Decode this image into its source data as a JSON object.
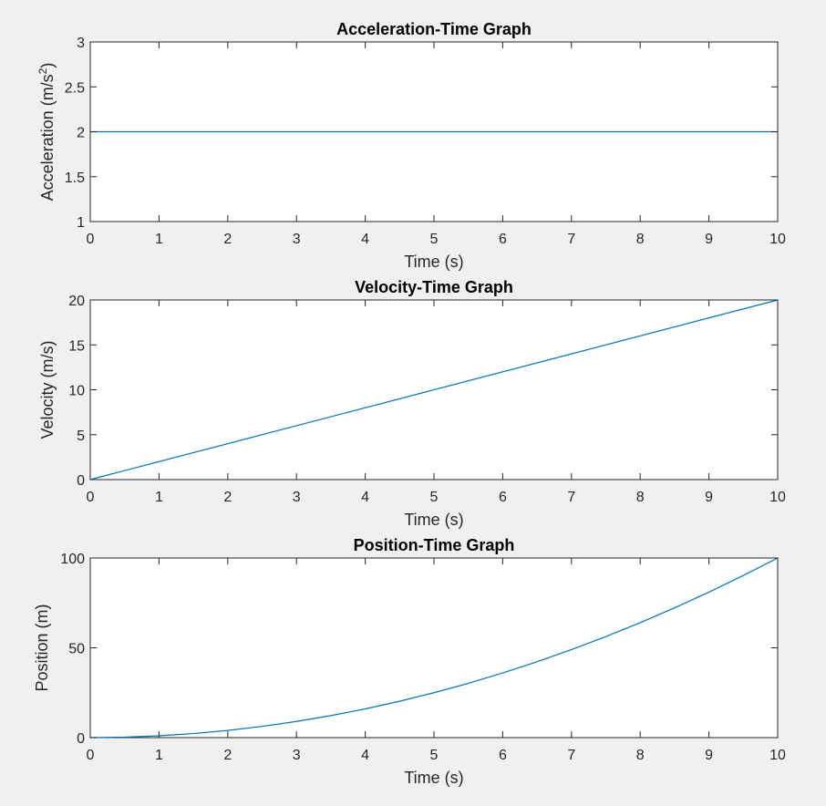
{
  "figure": {
    "background": "#f0f0f0",
    "axes_background": "#ffffff",
    "line_color": "#0072bd",
    "axis_color": "#262626"
  },
  "chart_data": [
    {
      "type": "line",
      "title": "Acceleration-Time Graph",
      "xlabel": "Time (s)",
      "ylabel": "Acceleration (m/s2)",
      "ylabel_base": "Acceleration (m/s",
      "ylabel_sup": "2",
      "ylabel_close": ")",
      "xlim": [
        0,
        10
      ],
      "ylim": [
        1,
        3
      ],
      "xticks": [
        0,
        1,
        2,
        3,
        4,
        5,
        6,
        7,
        8,
        9,
        10
      ],
      "yticks": [
        1,
        1.5,
        2,
        2.5,
        3
      ],
      "grid": false,
      "series": [
        {
          "x": [
            0,
            10
          ],
          "y": [
            2,
            2
          ]
        }
      ]
    },
    {
      "type": "line",
      "title": "Velocity-Time Graph",
      "xlabel": "Time (s)",
      "ylabel": "Velocity (m/s)",
      "xlim": [
        0,
        10
      ],
      "ylim": [
        0,
        20
      ],
      "xticks": [
        0,
        1,
        2,
        3,
        4,
        5,
        6,
        7,
        8,
        9,
        10
      ],
      "yticks": [
        0,
        5,
        10,
        15,
        20
      ],
      "grid": false,
      "series": [
        {
          "x": [
            0,
            10
          ],
          "y": [
            0,
            20
          ]
        }
      ]
    },
    {
      "type": "line",
      "title": "Position-Time Graph",
      "xlabel": "Time (s)",
      "ylabel": "Position (m)",
      "xlim": [
        0,
        10
      ],
      "ylim": [
        0,
        100
      ],
      "xticks": [
        0,
        1,
        2,
        3,
        4,
        5,
        6,
        7,
        8,
        9,
        10
      ],
      "yticks": [
        0,
        50,
        100
      ],
      "grid": false,
      "series": [
        {
          "x": [
            0,
            0.5,
            1,
            1.5,
            2,
            2.5,
            3,
            3.5,
            4,
            4.5,
            5,
            5.5,
            6,
            6.5,
            7,
            7.5,
            8,
            8.5,
            9,
            9.5,
            10
          ],
          "y": [
            0,
            0.25,
            1,
            2.25,
            4,
            6.25,
            9,
            12.25,
            16,
            20.25,
            25,
            30.25,
            36,
            42.25,
            49,
            56.25,
            64,
            72.25,
            81,
            90.25,
            100
          ]
        }
      ]
    }
  ]
}
